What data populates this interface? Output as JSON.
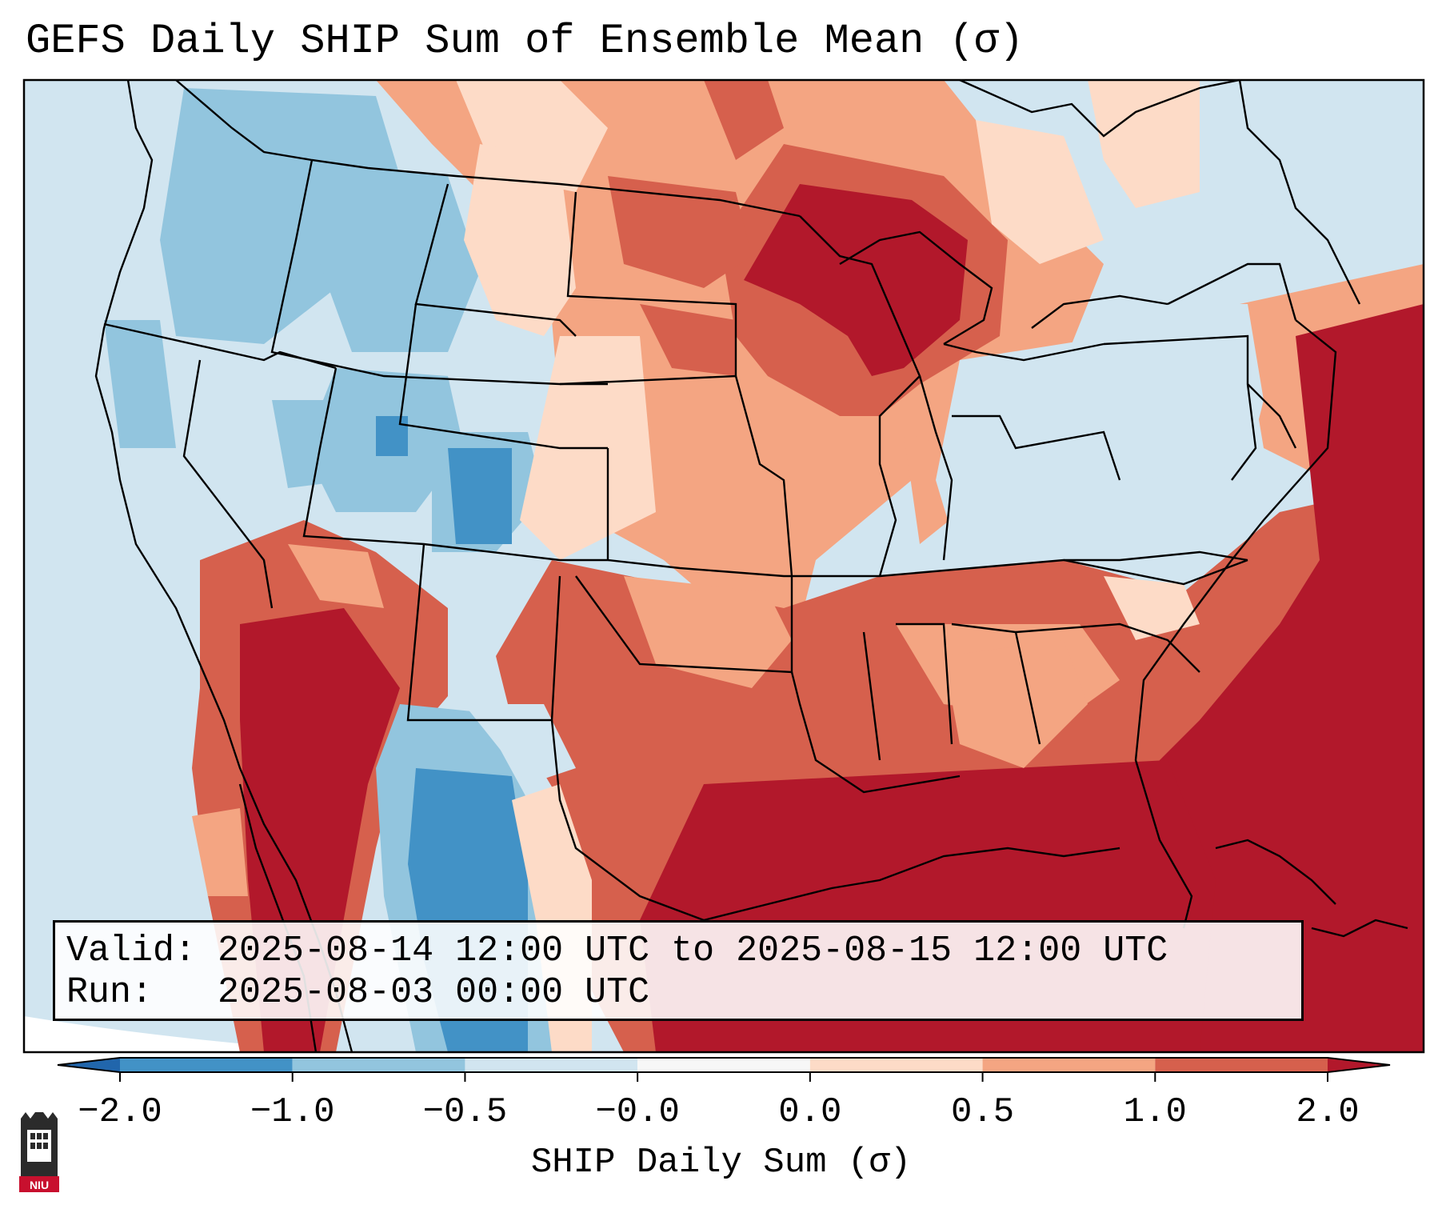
{
  "title": "GEFS Daily SHIP Sum of Ensemble Mean (σ)",
  "info": {
    "valid_line": "Valid: 2025-08-14 12:00 UTC to 2025-08-15 12:00 UTC",
    "run_line": "Run:   2025-08-03 00:00 UTC"
  },
  "colorbar": {
    "label": "SHIP Daily Sum (σ)",
    "ticks": [
      "−2.0",
      "−1.0",
      "−0.5",
      "−0.0",
      "0.0",
      "0.5",
      "1.0",
      "2.0"
    ],
    "colors": [
      "#4292c6",
      "#92c5de",
      "#d1e5f0",
      "#f7f7f7",
      "#fddbc7",
      "#f4a582",
      "#d6604d",
      "#b2182b"
    ],
    "extend_low_color": "#2166ac",
    "extend_high_color": "#b2182b"
  },
  "logo": {
    "text": "NIU",
    "icon": "niu-castle-logo-icon"
  }
}
